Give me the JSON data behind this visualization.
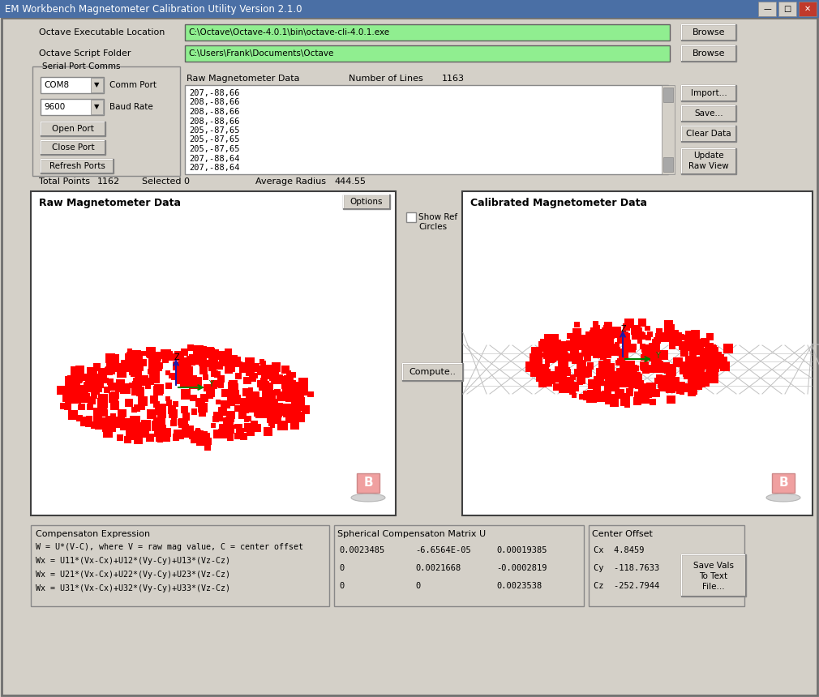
{
  "title": "EM Workbench Magnetometer Calibration Utility Version 2.1.0",
  "bg_color": "#d4d0c8",
  "titlebar_color": "#4a6fa5",
  "panel_bg": "#ffffff",
  "green_fill": "#90ee90",
  "btn_color": "#d4d0c8",
  "raw_title": "Raw Magnetometer Data",
  "cal_title": "Calibrated Magnetometer Data",
  "octave_exe": "C:\\Octave\\Octave-4.0.1\\bin\\octave-cli-4.0.1.exe",
  "octave_script": "C:\\Users\\Frank\\Documents\\Octave",
  "raw_data_lines": [
    "207,-88,66",
    "208,-88,66",
    "208,-88,66",
    "208,-88,66",
    "205,-87,65",
    "205,-87,65",
    "205,-87,65",
    "207,-88,64",
    "207,-88,64"
  ],
  "comp_expr_title": "Compensaton Expression",
  "comp_expr_lines": [
    "W = U*(V-C), where V = raw mag value, C = center offset",
    "Wx = U11*(Vx-Cx)+U12*(Vy-Cy)+U13*(Vz-Cz)",
    "Wx = U21*(Vx-Cx)+U22*(Vy-Cy)+U23*(Vz-Cz)",
    "Wx = U31*(Vx-Cx)+U32*(Vy-Cy)+U33*(Vz-Cz)"
  ],
  "sph_matrix_title": "Spherical Compensaton Matrix U",
  "sph_matrix": [
    [
      "0.0023485",
      "-6.6564E-05",
      "0.00019385"
    ],
    [
      "0",
      "0.0021668",
      "-0.0002819"
    ],
    [
      "0",
      "0",
      "0.0023538"
    ]
  ],
  "center_title": "Center Offset",
  "center_vals": [
    "Cx  4.8459",
    "Cy  -118.7633",
    "Cz  -252.7944"
  ]
}
